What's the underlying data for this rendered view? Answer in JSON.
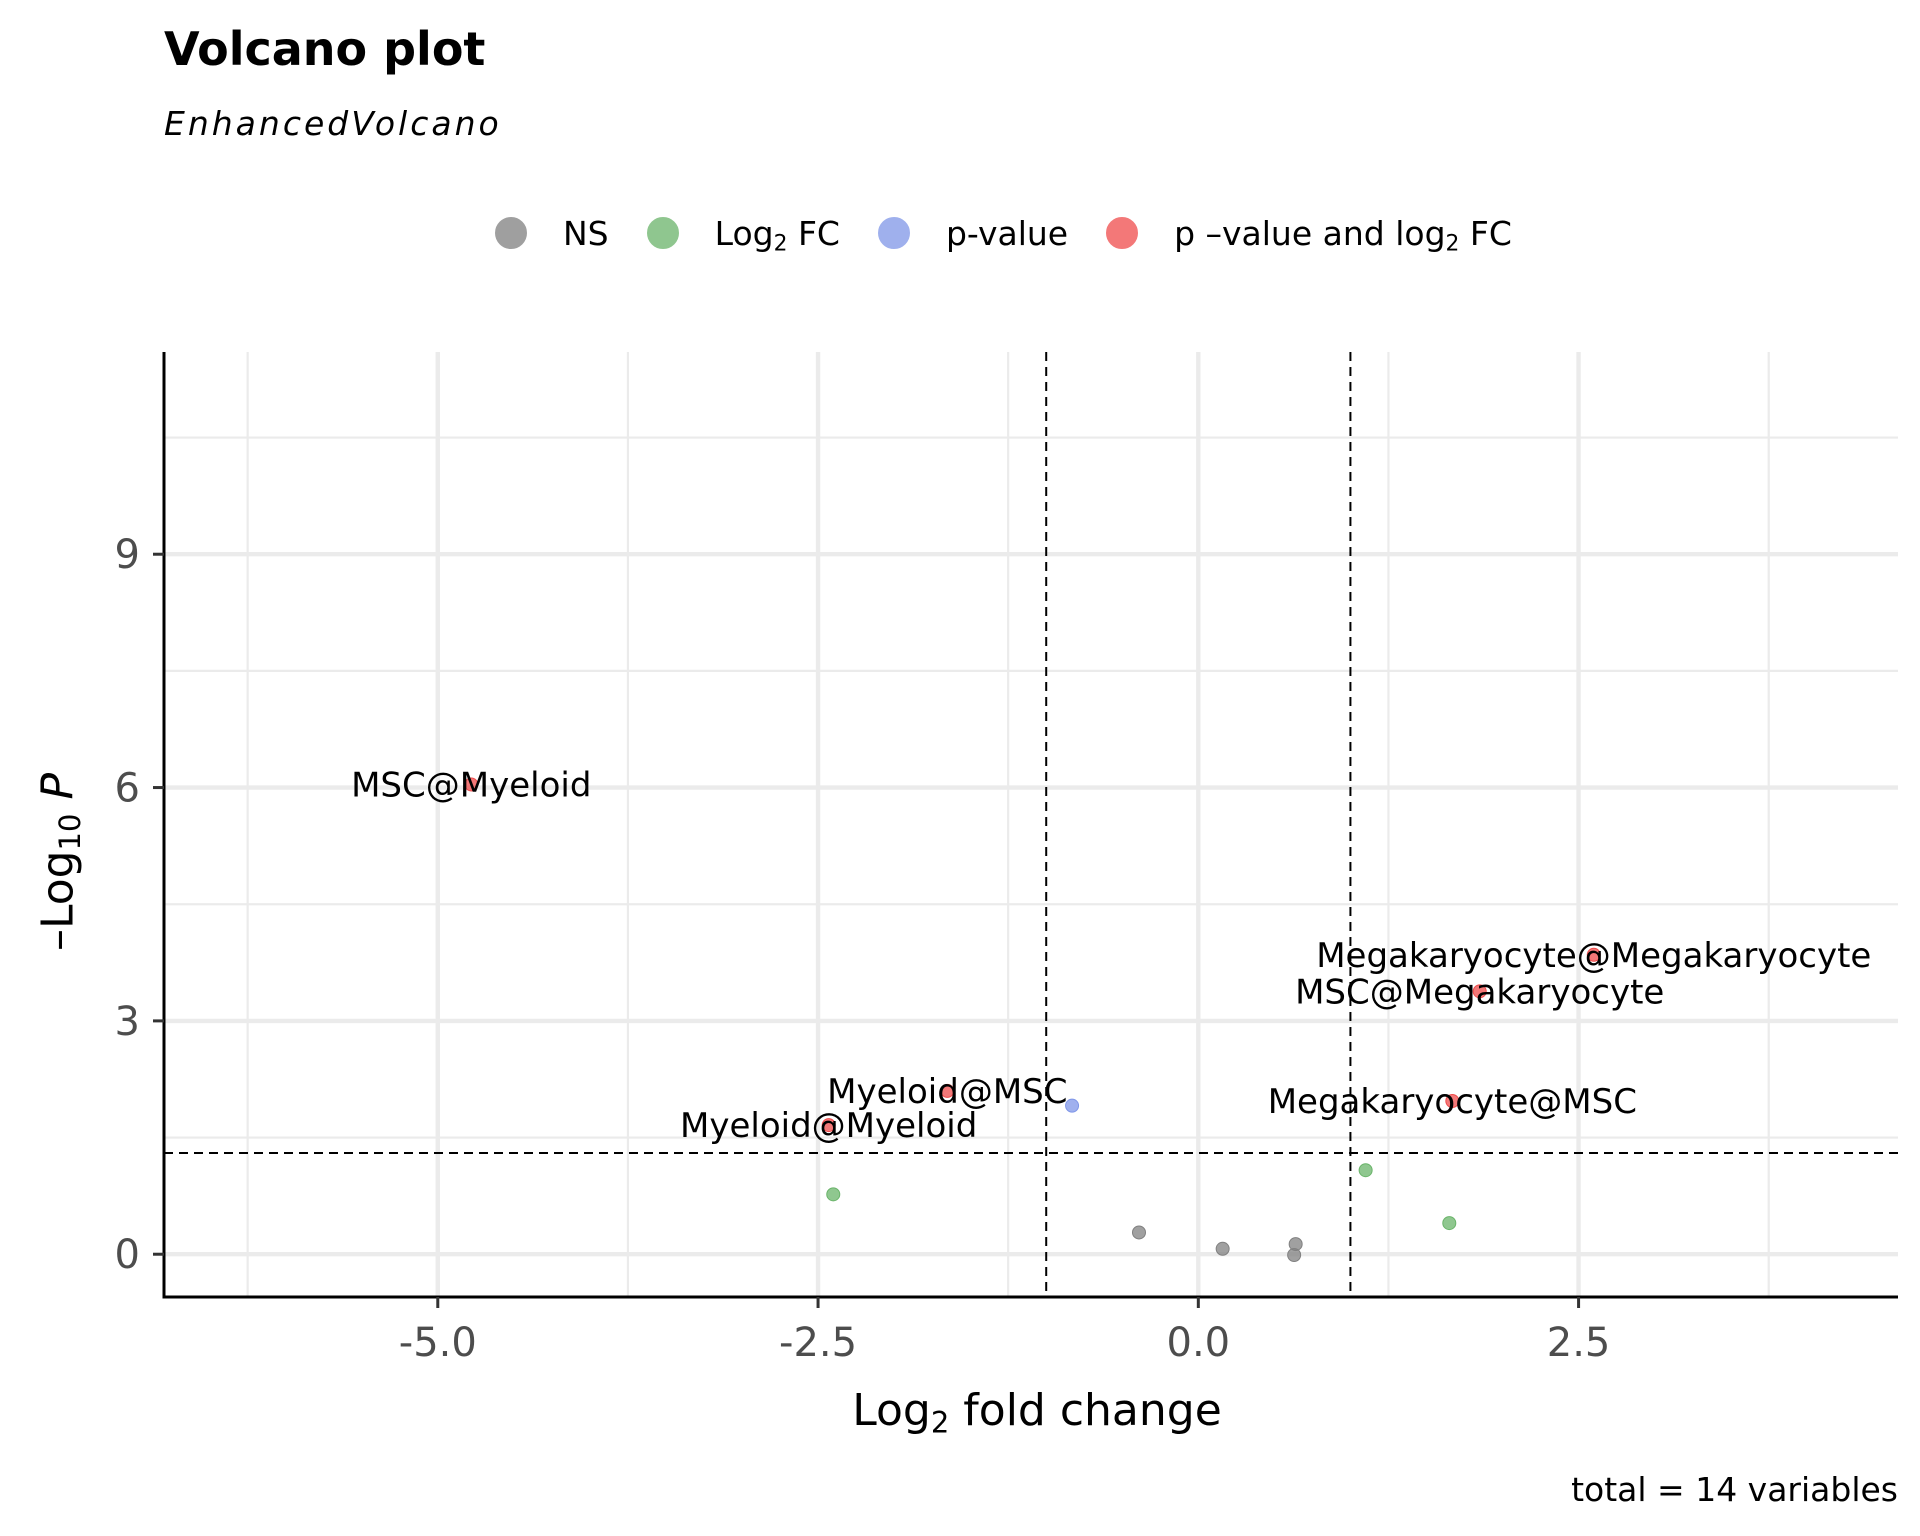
{
  "chart_data": {
    "type": "scatter",
    "title": "Volcano plot",
    "subtitle": "EnhancedVolcano",
    "caption": "total = 14 variables",
    "xlabel": {
      "base": "Log",
      "sub": "2",
      "rest": " fold change"
    },
    "ylabel": {
      "prefix": "–Log",
      "sub": "10",
      "var": " P"
    },
    "xlim": [
      -6.8,
      4.6
    ],
    "ylim": [
      -0.55,
      11.6
    ],
    "x_ticks": [
      -5.0,
      -2.5,
      0.0,
      2.5
    ],
    "x_tick_labels": [
      "-5.0",
      "-2.5",
      "0.0",
      "2.5"
    ],
    "y_ticks": [
      0,
      3,
      6,
      9
    ],
    "y_tick_labels": [
      "0",
      "3",
      "6",
      "9"
    ],
    "x_minor_gridlines": [
      -6.25,
      -3.75,
      -1.25,
      1.25,
      3.75
    ],
    "y_minor_gridlines": [
      1.5,
      4.5,
      7.5,
      10.5
    ],
    "fc_cutoff": 1.0,
    "p_cutoff_neglog10": 1.301,
    "grid": true,
    "legend_position": "top",
    "legend": [
      {
        "key": "NS",
        "label": "NS",
        "color": "#808080"
      },
      {
        "key": "FC",
        "label": "Log",
        "sub": "2",
        "rest": " FC",
        "color": "#6ab46a"
      },
      {
        "key": "P",
        "label": "p-value",
        "color": "#7f96e8"
      },
      {
        "key": "FCP",
        "label": "p –value and log",
        "sub": "2",
        "rest": " FC",
        "color": "#ef4b4b"
      }
    ],
    "points": [
      {
        "x": -4.78,
        "y": 6.04,
        "cls": "FCP",
        "label": "MSC@Myeloid"
      },
      {
        "x": -1.65,
        "y": 2.1,
        "cls": "FCP",
        "label": "Myeloid@MSC"
      },
      {
        "x": -2.43,
        "y": 1.66,
        "cls": "FCP",
        "label": "Myeloid@Myeloid"
      },
      {
        "x": 2.6,
        "y": 3.85,
        "cls": "FCP",
        "label": "Megakaryocyte@Megakaryocyte"
      },
      {
        "x": 1.85,
        "y": 3.38,
        "cls": "FCP",
        "label": "MSC@Megakaryocyte"
      },
      {
        "x": 1.67,
        "y": 1.97,
        "cls": "FCP",
        "label": "Megakaryocyte@MSC"
      },
      {
        "x": -0.83,
        "y": 1.91,
        "cls": "P"
      },
      {
        "x": -2.4,
        "y": 0.77,
        "cls": "FC"
      },
      {
        "x": 1.1,
        "y": 1.08,
        "cls": "FC"
      },
      {
        "x": 1.65,
        "y": 0.4,
        "cls": "FC"
      },
      {
        "x": -0.39,
        "y": 0.28,
        "cls": "NS"
      },
      {
        "x": 0.16,
        "y": 0.07,
        "cls": "NS"
      },
      {
        "x": 0.64,
        "y": 0.13,
        "cls": "NS"
      },
      {
        "x": 0.63,
        "y": -0.01,
        "cls": "NS"
      }
    ]
  }
}
